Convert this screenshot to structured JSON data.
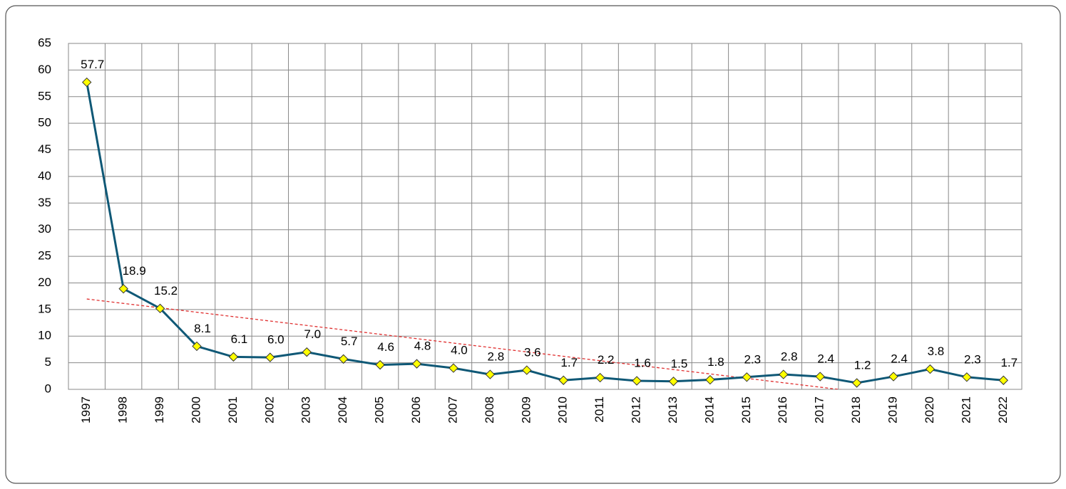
{
  "chart_data": {
    "type": "line",
    "categories": [
      "1997",
      "1998",
      "1999",
      "2000",
      "2001",
      "2002",
      "2003",
      "2004",
      "2005",
      "2006",
      "2007",
      "2008",
      "2009",
      "2010",
      "2011",
      "2012",
      "2013",
      "2014",
      "2015",
      "2016",
      "2017",
      "2018",
      "2019",
      "2020",
      "2021",
      "2022"
    ],
    "values": [
      57.7,
      18.9,
      15.2,
      8.1,
      6.1,
      6.0,
      7.0,
      5.7,
      4.6,
      4.8,
      4.0,
      2.8,
      3.6,
      1.7,
      2.2,
      1.6,
      1.5,
      1.8,
      2.3,
      2.8,
      2.4,
      1.2,
      2.4,
      3.8,
      2.3,
      1.7
    ],
    "value_labels": [
      "57.7",
      "18.9",
      "15.2",
      "8.1",
      "6.1",
      "6.0",
      "7.0",
      "5.7",
      "4.6",
      "4.8",
      "4.0",
      "2.8",
      "3.6",
      "1.7",
      "2.2",
      "1.6",
      "1.5",
      "1.8",
      "2.3",
      "2.8",
      "2.4",
      "1.2",
      "2.4",
      "3.8",
      "2.3",
      "1.7"
    ],
    "color": "#0f5876",
    "marker_color": "#ffff00",
    "trendline": "linear",
    "trendline_color": "#e03030",
    "ylim": [
      0,
      65
    ],
    "yticks": [
      0,
      5,
      10,
      15,
      20,
      25,
      30,
      35,
      40,
      45,
      50,
      55,
      60,
      65
    ],
    "grid": true
  }
}
